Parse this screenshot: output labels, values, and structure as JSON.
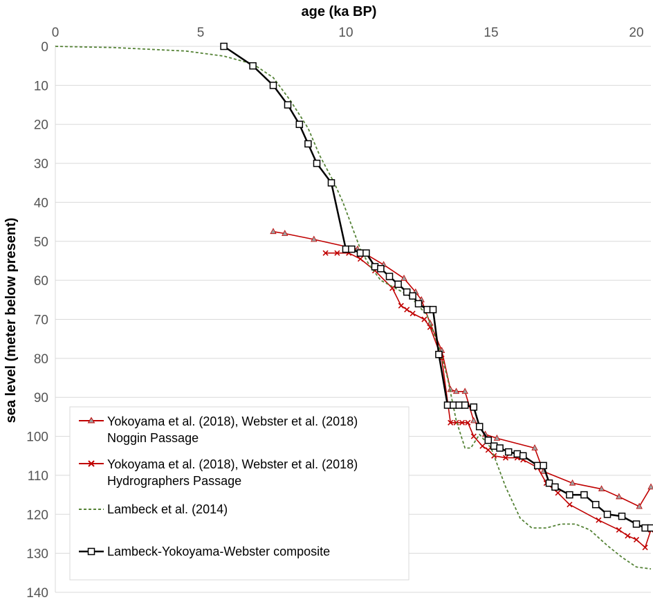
{
  "chart_data": {
    "type": "line",
    "title": "",
    "xlabel": "age (ka BP)",
    "ylabel": "sea level (meter below present)",
    "xlim": [
      0,
      20.5
    ],
    "ylim": [
      0,
      140
    ],
    "y_inverted": true,
    "x_ticks": [
      0,
      5,
      10,
      15,
      20
    ],
    "y_ticks": [
      0,
      10,
      20,
      30,
      40,
      50,
      60,
      70,
      80,
      90,
      100,
      110,
      120,
      130,
      140
    ],
    "x_axis_position": "top",
    "grid": "horizontal",
    "legend_position": "bottom-left",
    "colors": {
      "noggin": "#c00000",
      "hydrographers": "#c00000",
      "lambeck": "#548235",
      "composite": "#000000",
      "grid": "#d9d9d9",
      "noggin_marker": "#a0a0a0"
    },
    "series": [
      {
        "name": "Yokoyama et al. (2018), Webster et al. (2018)",
        "name_line2": "Noggin Passage",
        "marker": "triangle",
        "x": [
          7.5,
          7.9,
          8.9,
          10.4,
          11.3,
          12.0,
          12.4,
          12.6,
          12.9,
          13.3,
          13.6,
          13.8,
          14.1,
          14.4,
          14.8,
          15.2,
          16.5,
          16.8,
          17.8,
          18.8,
          19.4,
          20.1,
          20.5
        ],
        "y": [
          47.5,
          48,
          49.5,
          52,
          56,
          59.5,
          63,
          65,
          71,
          78,
          88,
          88.5,
          88.5,
          96,
          99.5,
          100.5,
          103,
          109,
          112,
          113.5,
          115.5,
          118,
          113
        ]
      },
      {
        "name": "Yokoyama et al. (2018), Webster et al. (2018)",
        "name_line2": "Hydrographers Passage",
        "marker": "x",
        "x": [
          9.3,
          9.7,
          10.1,
          10.5,
          11.0,
          11.6,
          11.9,
          12.1,
          12.3,
          12.7,
          12.9,
          13.3,
          13.6,
          13.8,
          14.0,
          14.2,
          14.4,
          14.7,
          14.9,
          15.1,
          15.5,
          15.9,
          16.1,
          16.6,
          16.9,
          17.3,
          17.7,
          18.7,
          19.4,
          19.7,
          20.0,
          20.3,
          20.5
        ],
        "y": [
          53,
          53,
          53,
          54.5,
          57.5,
          62,
          66.5,
          67.5,
          68.5,
          70,
          72,
          80,
          96.5,
          96.5,
          96.5,
          96.5,
          100,
          102.5,
          103.5,
          105,
          105.5,
          105.5,
          106,
          108,
          112,
          114.5,
          117.5,
          121.5,
          124,
          125.5,
          126.5,
          128.5,
          124
        ]
      },
      {
        "name": "Lambeck et al. (2014)",
        "marker": "none",
        "x": [
          0,
          2,
          4.5,
          5.8,
          6.8,
          7.5,
          8.1,
          8.7,
          9.1,
          9.6,
          9.9,
          10.2,
          10.5,
          10.8,
          11.2,
          11.7,
          12.2,
          12.8,
          13.2,
          13.5,
          13.8,
          14.1,
          14.3,
          14.6,
          15.0,
          15.5,
          16.0,
          16.4,
          16.9,
          17.4,
          17.9,
          18.4,
          19.0,
          19.5,
          20.0,
          20.5
        ],
        "y": [
          0,
          0.3,
          1.2,
          2.5,
          4.5,
          8,
          14,
          21,
          28,
          35,
          40,
          46,
          52,
          56,
          60,
          62,
          64,
          69,
          77,
          85,
          96,
          103,
          103,
          99.5,
          103,
          113,
          121,
          123.5,
          123.5,
          122.5,
          122.5,
          124,
          128,
          131,
          133.5,
          134
        ]
      },
      {
        "name": "Lambeck-Yokoyama-Webster composite",
        "marker": "square",
        "x": [
          5.8,
          6.8,
          7.5,
          8.0,
          8.4,
          8.7,
          9.0,
          9.5,
          10.0,
          10.2,
          10.5,
          10.7,
          11.0,
          11.2,
          11.5,
          11.8,
          12.1,
          12.3,
          12.5,
          12.8,
          13.0,
          13.2,
          13.5,
          13.7,
          13.9,
          14.1,
          14.4,
          14.6,
          14.9,
          15.1,
          15.3,
          15.6,
          15.9,
          16.1,
          16.6,
          16.8,
          17.0,
          17.2,
          17.7,
          18.2,
          18.6,
          19.0,
          19.5,
          20.0,
          20.3,
          20.5
        ],
        "y": [
          0,
          5,
          10,
          15,
          20,
          25,
          30,
          35,
          52,
          52,
          53,
          53,
          56.5,
          57,
          59,
          61,
          63,
          64,
          66,
          67.5,
          67.5,
          79,
          92,
          92,
          92,
          92,
          92.5,
          97.5,
          101,
          102.5,
          103,
          104,
          104.5,
          105,
          107.5,
          107.5,
          112,
          113,
          115,
          115,
          117.5,
          120,
          120.5,
          122.5,
          123.5,
          123.5
        ]
      }
    ]
  }
}
